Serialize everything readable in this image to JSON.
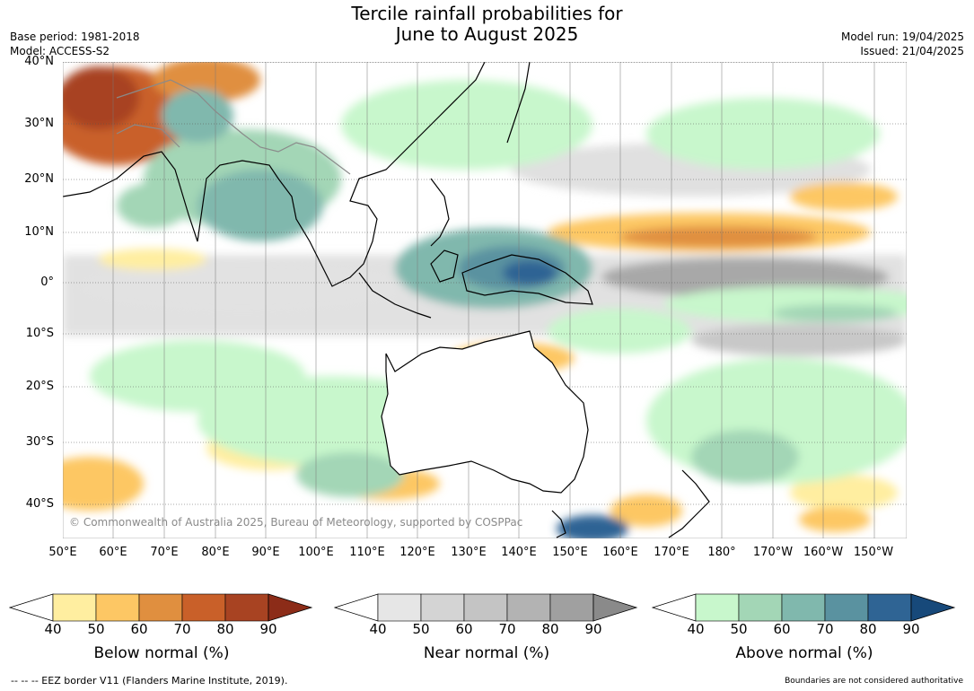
{
  "title_line1": "Tercile rainfall probabilities for",
  "title_line2": "June to August 2025",
  "base_period": "Base period: 1981-2018",
  "model": "Model: ACCESS-S2",
  "model_run": "Model run: 19/04/2025",
  "issued": "Issued: 21/04/2025",
  "copyright": "© Commonwealth of Australia 2025, Bureau of Meteorology, supported by COSPPac",
  "lat_labels": [
    "40°N",
    "30°N",
    "20°N",
    "10°N",
    "0°",
    "10°S",
    "20°S",
    "30°S",
    "40°S"
  ],
  "lon_labels": [
    "50°E",
    "60°E",
    "70°E",
    "80°E",
    "90°E",
    "100°E",
    "110°E",
    "120°E",
    "130°E",
    "140°E",
    "150°E",
    "160°E",
    "170°E",
    "180°",
    "170°W",
    "160°W",
    "150°W"
  ],
  "colorbars": [
    {
      "title": "Below normal (%)",
      "ticks": [
        "40",
        "50",
        "60",
        "70",
        "80",
        "90"
      ],
      "colors": [
        "#ffeea0",
        "#fdc764",
        "#e08f3f",
        "#c96029",
        "#a84322",
        "#8c2c18"
      ]
    },
    {
      "title": "Near normal (%)",
      "ticks": [
        "40",
        "50",
        "60",
        "70",
        "80",
        "90"
      ],
      "colors": [
        "#e6e6e6",
        "#d4d4d4",
        "#c4c4c4",
        "#b3b3b3",
        "#a0a0a0",
        "#8a8a8a"
      ]
    },
    {
      "title": "Above normal (%)",
      "ticks": [
        "40",
        "50",
        "60",
        "70",
        "80",
        "90"
      ],
      "colors": [
        "#c8f7cc",
        "#a3d6b6",
        "#80b8ad",
        "#5a92a0",
        "#2f6494",
        "#17497a"
      ]
    }
  ],
  "footer_left": "--  --  -- EEZ border V11 (Flanders Marine Institute, 2019).",
  "footer_right": "Boundaries are not considered authoritative"
}
